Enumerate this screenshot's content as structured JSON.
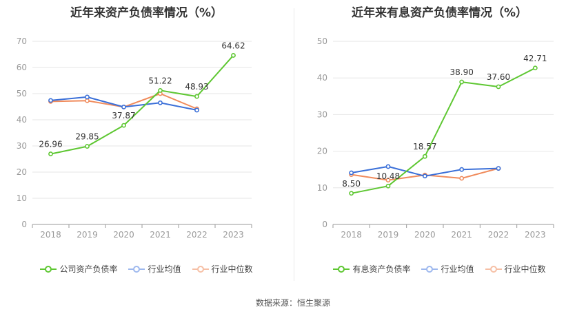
{
  "colors": {
    "company": "#5ec732",
    "industry_avg": "#3a6fd8",
    "industry_median": "#f08b5c"
  },
  "source": "数据来源：恒生聚源",
  "chart_data": [
    {
      "type": "line",
      "title": "近年来资产负债率情况（%）",
      "categories": [
        "2018",
        "2019",
        "2020",
        "2021",
        "2022",
        "2023"
      ],
      "ylim": [
        0,
        70
      ],
      "yticks": [
        0,
        10,
        20,
        30,
        40,
        50,
        60,
        70
      ],
      "series": [
        {
          "name": "公司资产负债率",
          "key": "company",
          "values": [
            26.96,
            29.85,
            37.87,
            51.22,
            48.93,
            64.62
          ],
          "labels": [
            "26.96",
            "29.85",
            "37.87",
            "51.22",
            "48.93",
            "64.62"
          ]
        },
        {
          "name": "行业均值",
          "key": "industry_avg",
          "values": [
            47.4,
            48.7,
            44.9,
            46.5,
            43.7,
            null
          ]
        },
        {
          "name": "行业中位数",
          "key": "industry_median",
          "values": [
            47.0,
            47.3,
            44.9,
            50.0,
            44.2,
            null
          ]
        }
      ]
    },
    {
      "type": "line",
      "title": "近年来有息资产负债率情况（%）",
      "categories": [
        "2018",
        "2019",
        "2020",
        "2021",
        "2022",
        "2023"
      ],
      "ylim": [
        0,
        50
      ],
      "yticks": [
        0,
        10,
        20,
        30,
        40,
        50
      ],
      "series": [
        {
          "name": "有息资产负债率",
          "key": "company",
          "values": [
            8.5,
            10.48,
            18.57,
            38.9,
            37.6,
            42.71
          ],
          "labels": [
            "8.50",
            "10.48",
            "18.57",
            "38.90",
            "37.60",
            "42.71"
          ]
        },
        {
          "name": "行业均值",
          "key": "industry_avg",
          "values": [
            14.1,
            15.8,
            13.2,
            15.0,
            15.3,
            null
          ]
        },
        {
          "name": "行业中位数",
          "key": "industry_median",
          "values": [
            13.6,
            12.1,
            13.5,
            12.6,
            15.3,
            null
          ]
        }
      ]
    }
  ]
}
